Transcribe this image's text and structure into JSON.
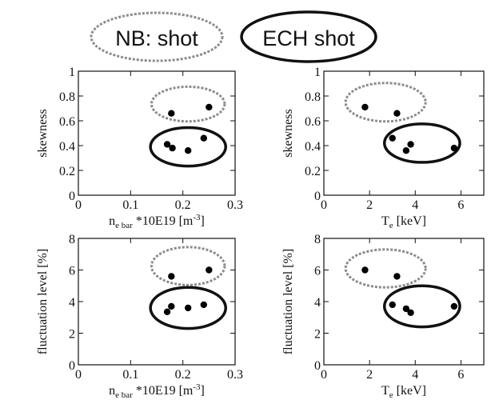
{
  "legend": {
    "nb_label": "NB: shot",
    "ech_label": "ECH shot"
  },
  "colors": {
    "nb": "#8c8c8c",
    "ech": "#111111",
    "point": "#000000"
  },
  "chart_data": [
    {
      "type": "scatter",
      "position": "top-left",
      "xlabel": {
        "main": "n",
        "sub": "e bar",
        "rest": " *10E19 [m",
        "sup": "-3",
        "end": "]"
      },
      "ylabel": "skewness",
      "xlim": [
        0,
        0.3
      ],
      "ylim": [
        0,
        1
      ],
      "xticks": [
        0,
        0.1,
        0.2,
        0.3
      ],
      "xtick_labels": [
        "0",
        "0.1",
        "0.2",
        "0.3"
      ],
      "yticks": [
        0,
        0.2,
        0.4,
        0.6,
        0.8,
        1
      ],
      "ytick_labels": [
        "0",
        "0.2",
        "0.4",
        "0.6",
        "0.8",
        "1"
      ],
      "series": [
        {
          "group": "NB",
          "points": [
            [
              0.178,
              0.66
            ],
            [
              0.25,
              0.71
            ]
          ]
        },
        {
          "group": "ECH",
          "points": [
            [
              0.17,
              0.41
            ],
            [
              0.18,
              0.38
            ],
            [
              0.21,
              0.36
            ],
            [
              0.24,
              0.46
            ]
          ]
        }
      ],
      "ellipses": [
        {
          "group": "NB",
          "center": [
            0.21,
            0.735
          ],
          "radii": [
            0.07,
            0.14
          ]
        },
        {
          "group": "ECH",
          "center": [
            0.21,
            0.39
          ],
          "radii": [
            0.072,
            0.155
          ]
        }
      ]
    },
    {
      "type": "scatter",
      "position": "top-right",
      "xlabel": {
        "main": "T",
        "sub": "e",
        "rest": " [keV]",
        "sup": "",
        "end": ""
      },
      "ylabel": "skewness",
      "xlim": [
        0,
        7
      ],
      "ylim": [
        0,
        1
      ],
      "xticks": [
        0,
        2,
        4,
        6
      ],
      "xtick_labels": [
        "0",
        "2",
        "4",
        "6"
      ],
      "yticks": [
        0,
        0.2,
        0.4,
        0.6,
        0.8,
        1
      ],
      "ytick_labels": [
        "0",
        "0.2",
        "0.4",
        "0.6",
        "0.8",
        "1"
      ],
      "series": [
        {
          "group": "NB",
          "points": [
            [
              1.8,
              0.71
            ],
            [
              3.2,
              0.66
            ]
          ]
        },
        {
          "group": "ECH",
          "points": [
            [
              3.0,
              0.46
            ],
            [
              3.6,
              0.36
            ],
            [
              3.8,
              0.41
            ],
            [
              5.7,
              0.38
            ]
          ]
        }
      ],
      "ellipses": [
        {
          "group": "NB",
          "center": [
            2.7,
            0.75
          ],
          "radii": [
            1.75,
            0.155
          ]
        },
        {
          "group": "ECH",
          "center": [
            4.3,
            0.42
          ],
          "radii": [
            1.65,
            0.155
          ]
        }
      ]
    },
    {
      "type": "scatter",
      "position": "bottom-left",
      "xlabel": {
        "main": "n",
        "sub": "e bar",
        "rest": " *10E19 [m",
        "sup": "-3",
        "end": "]"
      },
      "ylabel": "fluctuation level [%]",
      "xlim": [
        0,
        0.3
      ],
      "ylim": [
        0,
        8
      ],
      "xticks": [
        0,
        0.1,
        0.2,
        0.3
      ],
      "xtick_labels": [
        "0",
        "0.1",
        "0.2",
        "0.3"
      ],
      "yticks": [
        0,
        2,
        4,
        6,
        8
      ],
      "ytick_labels": [
        "0",
        "2",
        "4",
        "6",
        "8"
      ],
      "series": [
        {
          "group": "NB",
          "points": [
            [
              0.178,
              5.6
            ],
            [
              0.25,
              6.0
            ]
          ]
        },
        {
          "group": "ECH",
          "points": [
            [
              0.17,
              3.35
            ],
            [
              0.178,
              3.7
            ],
            [
              0.21,
              3.6
            ],
            [
              0.24,
              3.8
            ]
          ]
        }
      ],
      "ellipses": [
        {
          "group": "NB",
          "center": [
            0.21,
            6.25
          ],
          "radii": [
            0.07,
            1.2
          ]
        },
        {
          "group": "ECH",
          "center": [
            0.21,
            3.6
          ],
          "radii": [
            0.072,
            1.3
          ]
        }
      ]
    },
    {
      "type": "scatter",
      "position": "bottom-right",
      "xlabel": {
        "main": "T",
        "sub": "e",
        "rest": " [keV]",
        "sup": "",
        "end": ""
      },
      "ylabel": "fluctuation level [%]",
      "xlim": [
        0,
        7
      ],
      "ylim": [
        0,
        8
      ],
      "xticks": [
        0,
        2,
        4,
        6
      ],
      "xtick_labels": [
        "0",
        "2",
        "4",
        "6"
      ],
      "yticks": [
        0,
        2,
        4,
        6,
        8
      ],
      "ytick_labels": [
        "0",
        "2",
        "4",
        "6",
        "8"
      ],
      "series": [
        {
          "group": "NB",
          "points": [
            [
              1.8,
              6.0
            ],
            [
              3.2,
              5.6
            ]
          ]
        },
        {
          "group": "ECH",
          "points": [
            [
              3.0,
              3.8
            ],
            [
              3.6,
              3.55
            ],
            [
              3.8,
              3.3
            ],
            [
              5.7,
              3.7
            ]
          ]
        }
      ],
      "ellipses": [
        {
          "group": "NB",
          "center": [
            2.7,
            6.1
          ],
          "radii": [
            1.75,
            1.2
          ]
        },
        {
          "group": "ECH",
          "center": [
            4.3,
            3.7
          ],
          "radii": [
            1.65,
            1.3
          ]
        }
      ]
    }
  ]
}
